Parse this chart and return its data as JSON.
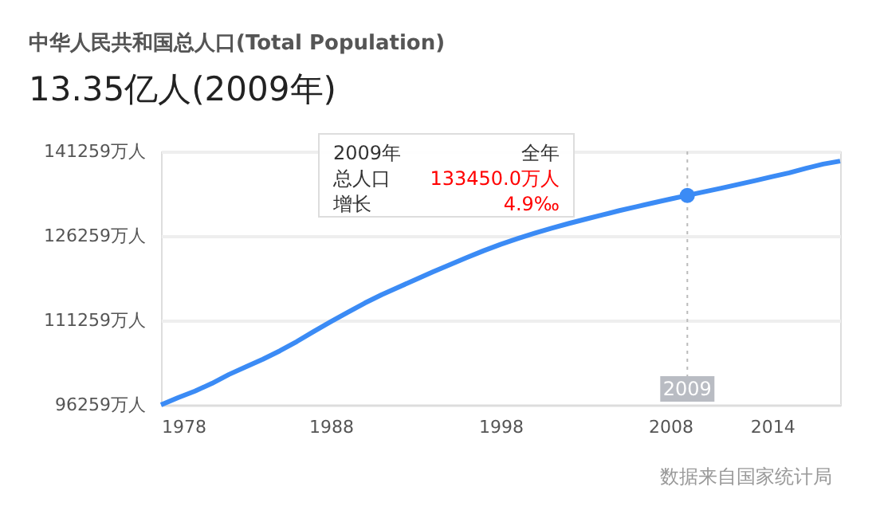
{
  "chart_data": {
    "type": "line",
    "title": "中华人民共和国总人口(Total Population)",
    "subtitle": "13.35亿人(2009年)",
    "series": [
      {
        "color": "#3b8bf5",
        "marker": "none",
        "x": [
          1978,
          1979,
          1980,
          1981,
          1982,
          1983,
          1984,
          1985,
          1986,
          1987,
          1988,
          1989,
          1990,
          1991,
          1992,
          1993,
          1994,
          1995,
          1996,
          1997,
          1998,
          1999,
          2000,
          2001,
          2002,
          2003,
          2004,
          2005,
          2006,
          2007,
          2008,
          2009,
          2010,
          2011,
          2012,
          2013,
          2014,
          2015,
          2016,
          2017,
          2018
        ],
        "values": [
          96259,
          97542,
          98705,
          100072,
          101654,
          103008,
          104357,
          105851,
          107507,
          109300,
          111026,
          112704,
          114333,
          115823,
          117171,
          118517,
          119850,
          121121,
          122389,
          123626,
          124761,
          125786,
          126743,
          127627,
          128453,
          129227,
          129988,
          130756,
          131448,
          132129,
          132802,
          133450,
          134091,
          134735,
          135404,
          136072,
          136782,
          137462,
          138271,
          139008,
          139538
        ]
      },
      {
        "type": "scatter",
        "marker": "circle",
        "color": "#3b8bf5",
        "x": [
          2009
        ],
        "values": [
          133450
        ]
      }
    ],
    "line_style": "solid",
    "xlim": [
      1978,
      2018
    ],
    "xticks": [
      1978,
      1988,
      1998,
      2008,
      2014
    ],
    "ylim": [
      96259,
      141259
    ],
    "yticks": [
      {
        "value": 96259,
        "label": "96259万人"
      },
      {
        "value": 111259,
        "label": "111259万人"
      },
      {
        "value": 126259,
        "label": "126259万人"
      },
      {
        "value": 141259,
        "label": "141259万人"
      }
    ],
    "grid": "y",
    "ref_lines": [
      {
        "axis": "x",
        "value": 2009,
        "label": "2009",
        "color": "#bbbbbb",
        "line_style": "dotted"
      }
    ],
    "annotations": [
      "2009年",
      "全年",
      "总人口",
      "133450.0万人",
      "增长",
      "4.9‰",
      "数据来自国家统计局"
    ]
  }
}
